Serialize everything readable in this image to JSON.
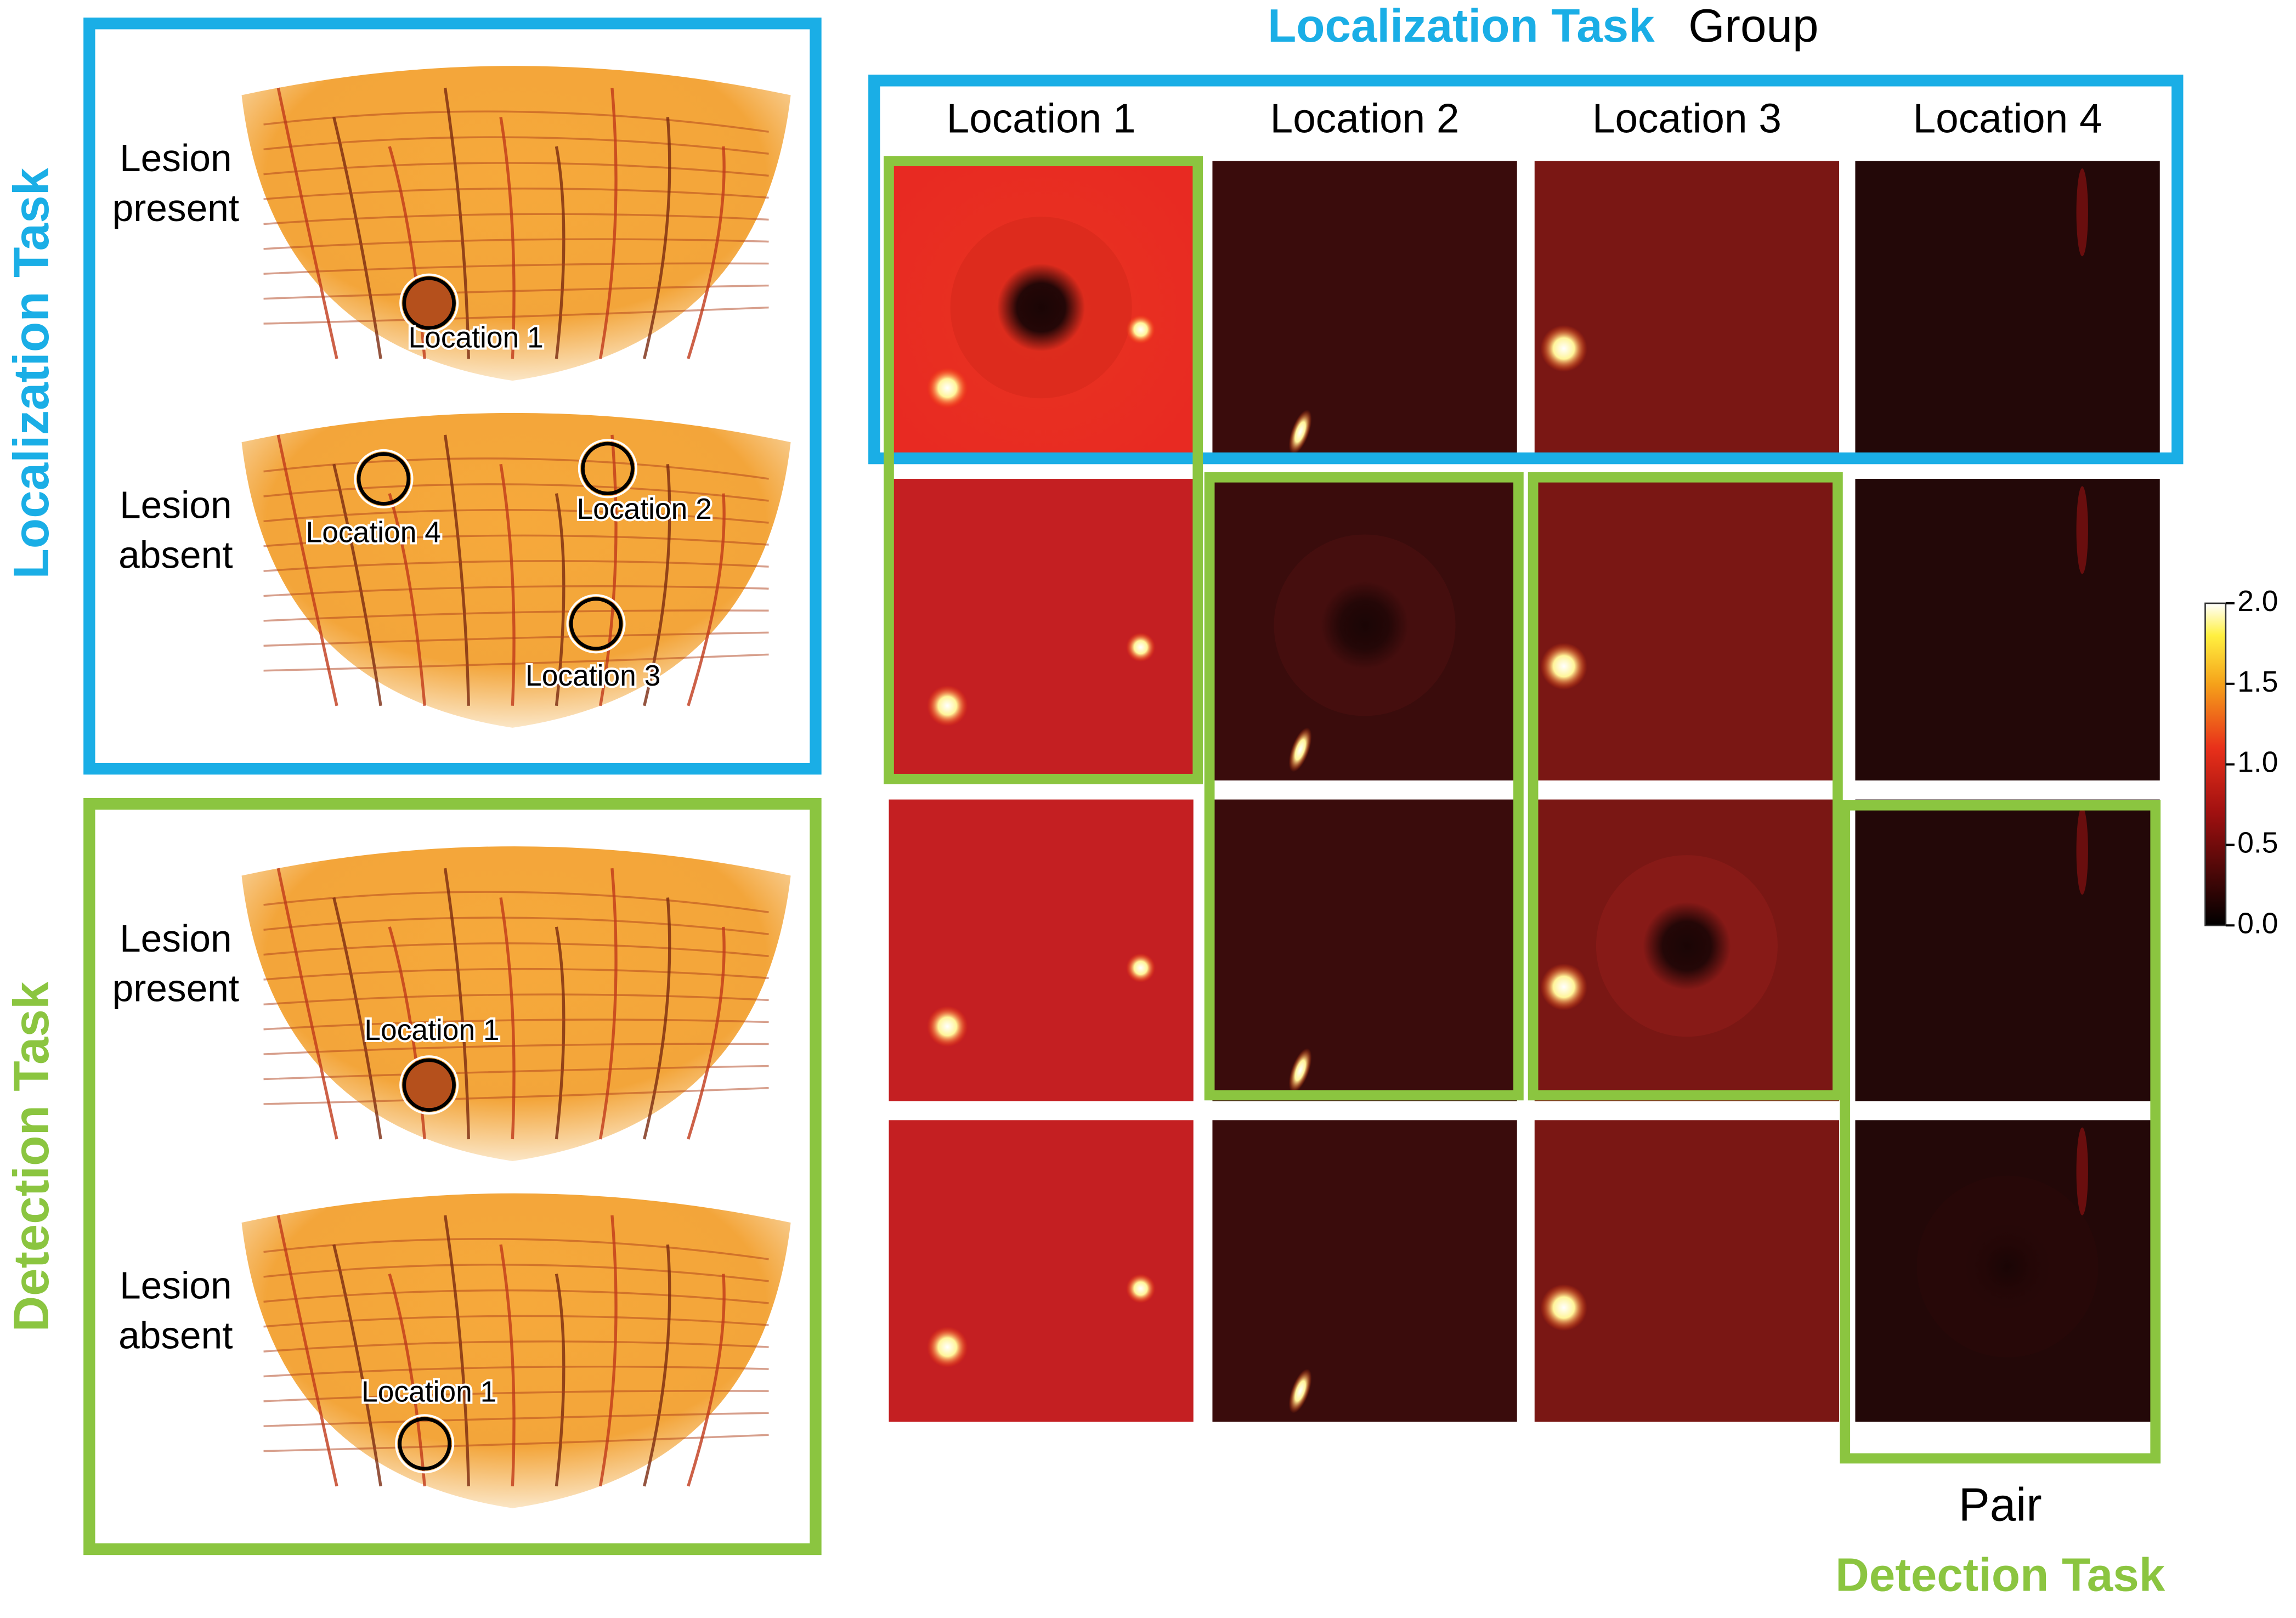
{
  "left_panels": {
    "localization": {
      "title": "Localization Task",
      "images": [
        {
          "label": [
            "Lesion",
            "present"
          ],
          "markers": [
            "Location 1"
          ]
        },
        {
          "label": [
            "Lesion",
            "absent"
          ],
          "markers": [
            "Location 4",
            "Location 2",
            "Location 3"
          ]
        }
      ]
    },
    "detection": {
      "title": "Detection Task",
      "images": [
        {
          "label": [
            "Lesion",
            "present"
          ],
          "markers": [
            "Location 1"
          ]
        },
        {
          "label": [
            "Lesion",
            "absent"
          ],
          "markers": [
            "Location 1"
          ]
        }
      ]
    }
  },
  "grid": {
    "title": [
      "Localization Task",
      "Group"
    ],
    "columns": [
      "Location 1",
      "Location 2",
      "Location 3",
      "Location 4"
    ],
    "footer": [
      "Pair",
      "Detection Task"
    ]
  },
  "colorbar": {
    "ylim": [
      0,
      2
    ],
    "ticks": [
      {
        "value": 0,
        "label": "0.0"
      },
      {
        "value": 0.5,
        "label": "0.5"
      },
      {
        "value": 1,
        "label": "1.0"
      },
      {
        "value": 1.5,
        "label": "1.5"
      },
      {
        "value": 2,
        "label": "2.0"
      }
    ]
  }
}
